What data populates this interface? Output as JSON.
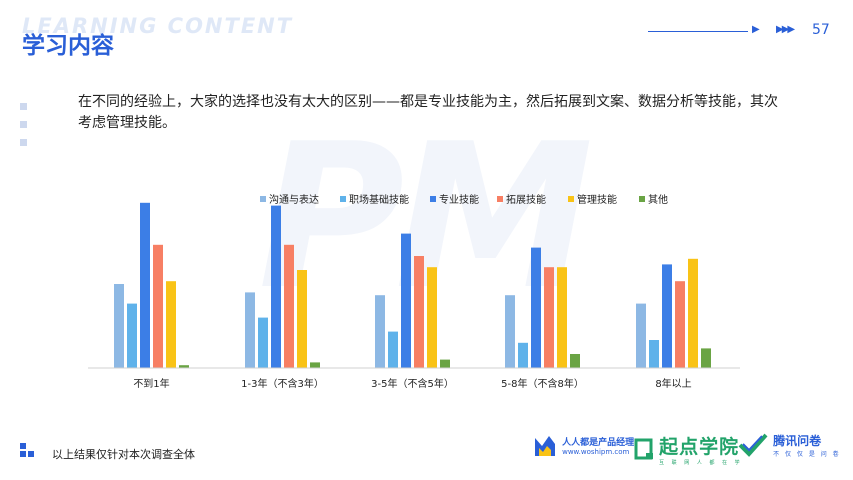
{
  "header": {
    "watermark": "LEARNING CONTENT",
    "title": "学习内容",
    "page_number": "57"
  },
  "description": "在不同的经验上，大家的选择也没有太大的区别——都是专业技能为主，然后拓展到文案、数据分析等技能，其次考虑管理技能。",
  "watermark_big": "PM",
  "footer": {
    "note": "以上结果仅针对本次调查全体",
    "logo1_name": "人人都是产品经理",
    "logo1_url": "www.woshipm.com",
    "logo2_name": "起点学院",
    "logo2_slogan": "互 联 网 人 都 在 学",
    "logo3_name": "腾讯问卷",
    "logo3_slogan": "不 仅 仅 是 问 卷"
  },
  "colors": {
    "accent": "#2a5fd7",
    "series": [
      "#8db8e4",
      "#5fb2ea",
      "#3c7ee6",
      "#f77f64",
      "#f9c316",
      "#6aa444"
    ]
  },
  "chart_data": {
    "type": "bar",
    "title": "",
    "xlabel": "",
    "ylabel": "",
    "ylim": [
      0,
      60
    ],
    "grid": false,
    "legend": "top",
    "categories": [
      "不到1年",
      "1-3年（不含3年）",
      "3-5年（不含5年）",
      "5-8年（不含8年）",
      "8年以上"
    ],
    "series": [
      {
        "name": "沟通与表达",
        "values": [
          30,
          27,
          26,
          26,
          23
        ]
      },
      {
        "name": "职场基础技能",
        "values": [
          23,
          18,
          13,
          9,
          10
        ]
      },
      {
        "name": "专业技能",
        "values": [
          59,
          58,
          48,
          43,
          37
        ]
      },
      {
        "name": "拓展技能",
        "values": [
          44,
          44,
          40,
          36,
          31
        ]
      },
      {
        "name": "管理技能",
        "values": [
          31,
          35,
          36,
          36,
          39
        ]
      },
      {
        "name": "其他",
        "values": [
          1,
          2,
          3,
          5,
          7
        ]
      }
    ]
  }
}
